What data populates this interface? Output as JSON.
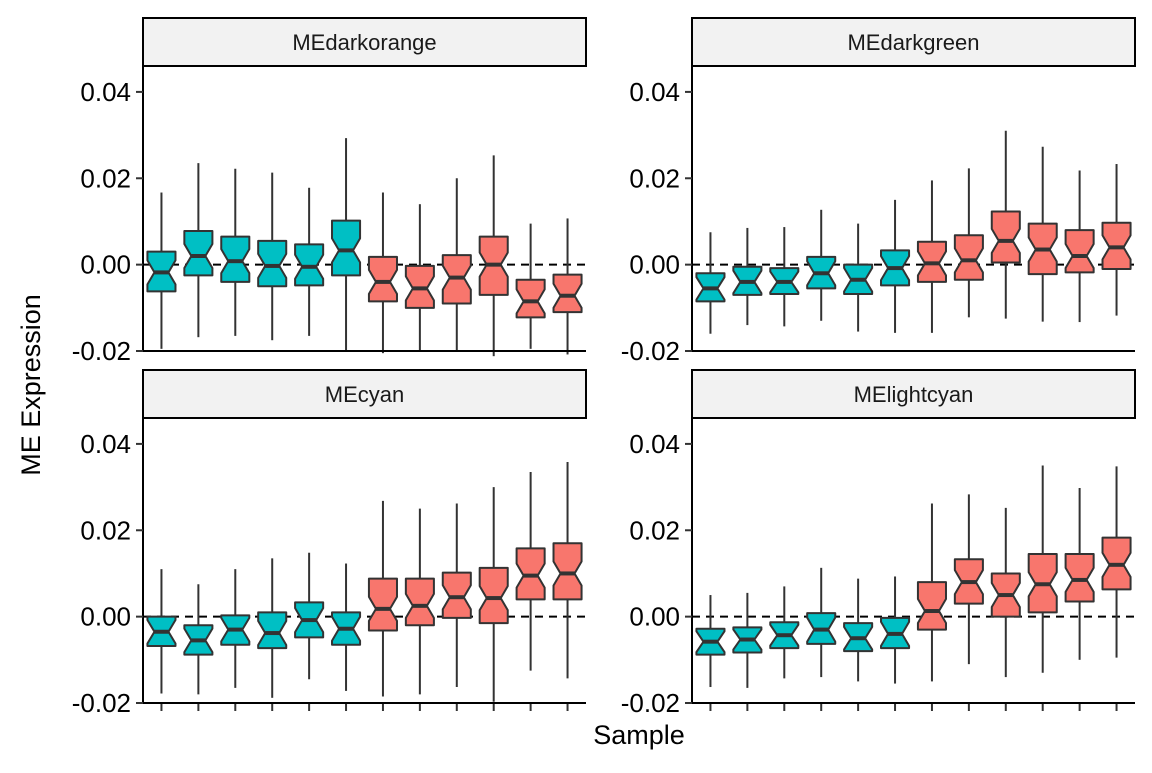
{
  "chart_data": {
    "type": "box",
    "subtype": "notched boxplot, faceted 2x2",
    "xlabel": "Sample",
    "ylabel": "ME Expression",
    "ylim": [
      -0.02,
      0.046
    ],
    "y_ticks": [
      -0.02,
      0.0,
      0.02,
      0.04
    ],
    "y_tick_labels": [
      "-0.02",
      "0.00",
      "0.02",
      "0.04"
    ],
    "x_tick_labels_shown": false,
    "reference_line": {
      "y": 0.0,
      "style": "dashed"
    },
    "grid": false,
    "legend": "none",
    "group_colors": {
      "group_a": "#00BFC4",
      "group_b": "#F8766D"
    },
    "panels": [
      {
        "title": "MEdarkorange",
        "boxes": [
          {
            "group": "group_a",
            "whisker_low": -0.0195,
            "q1": -0.0062,
            "median": -0.0018,
            "q3": 0.003,
            "whisker_high": 0.0167
          },
          {
            "group": "group_a",
            "whisker_low": -0.0168,
            "q1": -0.0025,
            "median": 0.002,
            "q3": 0.0078,
            "whisker_high": 0.0235
          },
          {
            "group": "group_a",
            "whisker_low": -0.0165,
            "q1": -0.004,
            "median": 0.0008,
            "q3": 0.0065,
            "whisker_high": 0.0222
          },
          {
            "group": "group_a",
            "whisker_low": -0.0175,
            "q1": -0.005,
            "median": -0.0003,
            "q3": 0.0055,
            "whisker_high": 0.0213
          },
          {
            "group": "group_a",
            "whisker_low": -0.0165,
            "q1": -0.0048,
            "median": -0.0005,
            "q3": 0.0047,
            "whisker_high": 0.0178
          },
          {
            "group": "group_a",
            "whisker_low": -0.02,
            "q1": -0.0025,
            "median": 0.0033,
            "q3": 0.0102,
            "whisker_high": 0.0293
          },
          {
            "group": "group_b",
            "whisker_low": -0.0205,
            "q1": -0.0085,
            "median": -0.004,
            "q3": 0.0018,
            "whisker_high": 0.0167
          },
          {
            "group": "group_b",
            "whisker_low": -0.02,
            "q1": -0.01,
            "median": -0.0055,
            "q3": -0.0003,
            "whisker_high": 0.014
          },
          {
            "group": "group_b",
            "whisker_low": -0.0198,
            "q1": -0.009,
            "median": -0.003,
            "q3": 0.0022,
            "whisker_high": 0.02
          },
          {
            "group": "group_b",
            "whisker_low": -0.0212,
            "q1": -0.007,
            "median": 0.0,
            "q3": 0.0065,
            "whisker_high": 0.0253
          },
          {
            "group": "group_b",
            "whisker_low": -0.0195,
            "q1": -0.0122,
            "median": -0.0085,
            "q3": -0.0035,
            "whisker_high": 0.0095
          },
          {
            "group": "group_b",
            "whisker_low": -0.0208,
            "q1": -0.011,
            "median": -0.0072,
            "q3": -0.0023,
            "whisker_high": 0.0107
          }
        ]
      },
      {
        "title": "MEdarkgreen",
        "boxes": [
          {
            "group": "group_a",
            "whisker_low": -0.016,
            "q1": -0.0085,
            "median": -0.0055,
            "q3": -0.002,
            "whisker_high": 0.0075
          },
          {
            "group": "group_a",
            "whisker_low": -0.014,
            "q1": -0.007,
            "median": -0.004,
            "q3": -0.0005,
            "whisker_high": 0.0085
          },
          {
            "group": "group_a",
            "whisker_low": -0.0143,
            "q1": -0.0068,
            "median": -0.004,
            "q3": -0.0008,
            "whisker_high": 0.0087
          },
          {
            "group": "group_a",
            "whisker_low": -0.013,
            "q1": -0.0055,
            "median": -0.002,
            "q3": 0.0018,
            "whisker_high": 0.0127
          },
          {
            "group": "group_a",
            "whisker_low": -0.0155,
            "q1": -0.0068,
            "median": -0.0035,
            "q3": 0.0,
            "whisker_high": 0.0095
          },
          {
            "group": "group_a",
            "whisker_low": -0.0158,
            "q1": -0.0048,
            "median": -0.0008,
            "q3": 0.0033,
            "whisker_high": 0.015
          },
          {
            "group": "group_b",
            "whisker_low": -0.0158,
            "q1": -0.004,
            "median": 0.0003,
            "q3": 0.0053,
            "whisker_high": 0.0195
          },
          {
            "group": "group_b",
            "whisker_low": -0.0122,
            "q1": -0.0035,
            "median": 0.001,
            "q3": 0.0068,
            "whisker_high": 0.0223
          },
          {
            "group": "group_b",
            "whisker_low": -0.0125,
            "q1": 0.0005,
            "median": 0.0055,
            "q3": 0.0123,
            "whisker_high": 0.031
          },
          {
            "group": "group_b",
            "whisker_low": -0.0132,
            "q1": -0.0022,
            "median": 0.0035,
            "q3": 0.0095,
            "whisker_high": 0.0273
          },
          {
            "group": "group_b",
            "whisker_low": -0.0133,
            "q1": -0.0018,
            "median": 0.002,
            "q3": 0.008,
            "whisker_high": 0.0218
          },
          {
            "group": "group_b",
            "whisker_low": -0.0118,
            "q1": -0.001,
            "median": 0.004,
            "q3": 0.0097,
            "whisker_high": 0.0233
          }
        ]
      },
      {
        "title": "MEcyan",
        "boxes": [
          {
            "group": "group_a",
            "whisker_low": -0.0178,
            "q1": -0.0068,
            "median": -0.0035,
            "q3": 0.0,
            "whisker_high": 0.011
          },
          {
            "group": "group_a",
            "whisker_low": -0.018,
            "q1": -0.0088,
            "median": -0.0055,
            "q3": -0.002,
            "whisker_high": 0.0075
          },
          {
            "group": "group_a",
            "whisker_low": -0.0165,
            "q1": -0.0065,
            "median": -0.003,
            "q3": 0.0003,
            "whisker_high": 0.011
          },
          {
            "group": "group_a",
            "whisker_low": -0.0188,
            "q1": -0.0073,
            "median": -0.0038,
            "q3": 0.001,
            "whisker_high": 0.0135
          },
          {
            "group": "group_a",
            "whisker_low": -0.0145,
            "q1": -0.0048,
            "median": -0.0008,
            "q3": 0.0033,
            "whisker_high": 0.0148
          },
          {
            "group": "group_a",
            "whisker_low": -0.0172,
            "q1": -0.0065,
            "median": -0.0028,
            "q3": 0.001,
            "whisker_high": 0.0123
          },
          {
            "group": "group_b",
            "whisker_low": -0.0185,
            "q1": -0.0032,
            "median": 0.0018,
            "q3": 0.0088,
            "whisker_high": 0.0268
          },
          {
            "group": "group_b",
            "whisker_low": -0.018,
            "q1": -0.002,
            "median": 0.0025,
            "q3": 0.0088,
            "whisker_high": 0.025
          },
          {
            "group": "group_b",
            "whisker_low": -0.0163,
            "q1": -0.0003,
            "median": 0.0045,
            "q3": 0.0102,
            "whisker_high": 0.0262
          },
          {
            "group": "group_b",
            "whisker_low": -0.0197,
            "q1": -0.0015,
            "median": 0.0043,
            "q3": 0.0113,
            "whisker_high": 0.03
          },
          {
            "group": "group_b",
            "whisker_low": -0.0125,
            "q1": 0.004,
            "median": 0.0095,
            "q3": 0.0158,
            "whisker_high": 0.0335
          },
          {
            "group": "group_b",
            "whisker_low": -0.0143,
            "q1": 0.004,
            "median": 0.01,
            "q3": 0.017,
            "whisker_high": 0.0358
          }
        ]
      },
      {
        "title": "MElightcyan",
        "boxes": [
          {
            "group": "group_a",
            "whisker_low": -0.0163,
            "q1": -0.0088,
            "median": -0.0058,
            "q3": -0.0028,
            "whisker_high": 0.005
          },
          {
            "group": "group_a",
            "whisker_low": -0.0165,
            "q1": -0.0083,
            "median": -0.0053,
            "q3": -0.0025,
            "whisker_high": 0.0055
          },
          {
            "group": "group_a",
            "whisker_low": -0.0143,
            "q1": -0.0073,
            "median": -0.0043,
            "q3": -0.0013,
            "whisker_high": 0.007
          },
          {
            "group": "group_a",
            "whisker_low": -0.014,
            "q1": -0.0063,
            "median": -0.003,
            "q3": 0.0008,
            "whisker_high": 0.0113
          },
          {
            "group": "group_a",
            "whisker_low": -0.015,
            "q1": -0.008,
            "median": -0.005,
            "q3": -0.0015,
            "whisker_high": 0.0088
          },
          {
            "group": "group_a",
            "whisker_low": -0.0155,
            "q1": -0.0073,
            "median": -0.004,
            "q3": -0.0003,
            "whisker_high": 0.0093
          },
          {
            "group": "group_b",
            "whisker_low": -0.015,
            "q1": -0.003,
            "median": 0.0013,
            "q3": 0.008,
            "whisker_high": 0.0262
          },
          {
            "group": "group_b",
            "whisker_low": -0.011,
            "q1": 0.003,
            "median": 0.008,
            "q3": 0.0133,
            "whisker_high": 0.0283
          },
          {
            "group": "group_b",
            "whisker_low": -0.014,
            "q1": 0.0,
            "median": 0.005,
            "q3": 0.01,
            "whisker_high": 0.0252
          },
          {
            "group": "group_b",
            "whisker_low": -0.013,
            "q1": 0.001,
            "median": 0.0075,
            "q3": 0.0145,
            "whisker_high": 0.035
          },
          {
            "group": "group_b",
            "whisker_low": -0.01,
            "q1": 0.0035,
            "median": 0.0085,
            "q3": 0.0145,
            "whisker_high": 0.0298
          },
          {
            "group": "group_b",
            "whisker_low": -0.0095,
            "q1": 0.0063,
            "median": 0.012,
            "q3": 0.0183,
            "whisker_high": 0.0348
          }
        ]
      }
    ]
  }
}
